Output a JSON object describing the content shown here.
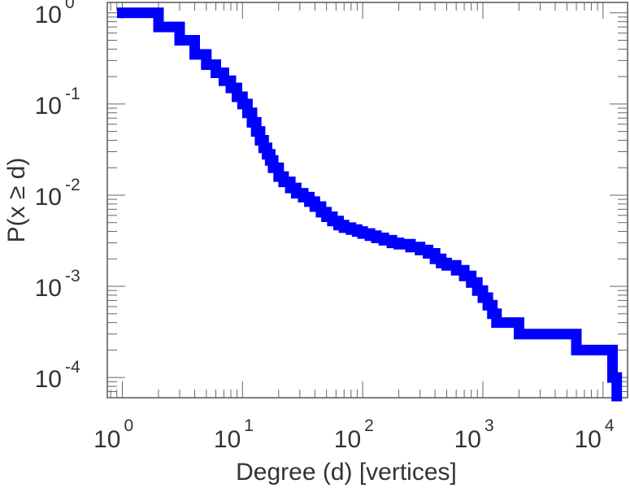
{
  "chart_data": {
    "type": "line",
    "step": true,
    "xscale": "log",
    "yscale": "log",
    "xlabel": "Degree (d) [vertices]",
    "ylabel": "P(x ≥ d)",
    "xlim": [
      0.75,
      16000
    ],
    "ylim": [
      6e-05,
      1.3
    ],
    "grid": false,
    "series_color": "#0000ff",
    "x_ticks": [
      {
        "value": 1,
        "base": "10",
        "exp": "0"
      },
      {
        "value": 10,
        "base": "10",
        "exp": "1"
      },
      {
        "value": 100,
        "base": "10",
        "exp": "2"
      },
      {
        "value": 1000,
        "base": "10",
        "exp": "3"
      },
      {
        "value": 10000,
        "base": "10",
        "exp": "4"
      }
    ],
    "y_ticks": [
      {
        "value": 1,
        "base": "10",
        "exp": "0"
      },
      {
        "value": 0.1,
        "base": "10",
        "exp": "-1"
      },
      {
        "value": 0.01,
        "base": "10",
        "exp": "-2"
      },
      {
        "value": 0.001,
        "base": "10",
        "exp": "-3"
      },
      {
        "value": 0.0001,
        "base": "10",
        "exp": "-4"
      }
    ],
    "series": [
      {
        "x": [
          1,
          2,
          3,
          4,
          5,
          6,
          7,
          8,
          9,
          10,
          11,
          12,
          13,
          14,
          15,
          16,
          17,
          18,
          20,
          22,
          25,
          28,
          32,
          36,
          40,
          45,
          50,
          56,
          63,
          70,
          80,
          90,
          100,
          115,
          130,
          150,
          175,
          200,
          250,
          300,
          350,
          400,
          450,
          500,
          600,
          700,
          800,
          900,
          1000,
          1100,
          1200,
          1300,
          2000,
          6000,
          12000,
          13000
        ],
        "y": [
          1.0,
          0.7,
          0.5,
          0.35,
          0.27,
          0.22,
          0.18,
          0.15,
          0.12,
          0.1,
          0.08,
          0.063,
          0.05,
          0.04,
          0.033,
          0.028,
          0.024,
          0.02,
          0.016,
          0.014,
          0.012,
          0.0105,
          0.0095,
          0.0085,
          0.0075,
          0.0065,
          0.0058,
          0.0052,
          0.0047,
          0.0044,
          0.0042,
          0.004,
          0.0038,
          0.0036,
          0.0034,
          0.0032,
          0.003,
          0.0029,
          0.0027,
          0.0025,
          0.0023,
          0.002,
          0.0018,
          0.0017,
          0.0015,
          0.0013,
          0.0011,
          0.0009,
          0.00075,
          0.00062,
          0.0005,
          0.0004,
          0.0003,
          0.0002,
          0.0001,
          0.0001
        ]
      }
    ]
  }
}
